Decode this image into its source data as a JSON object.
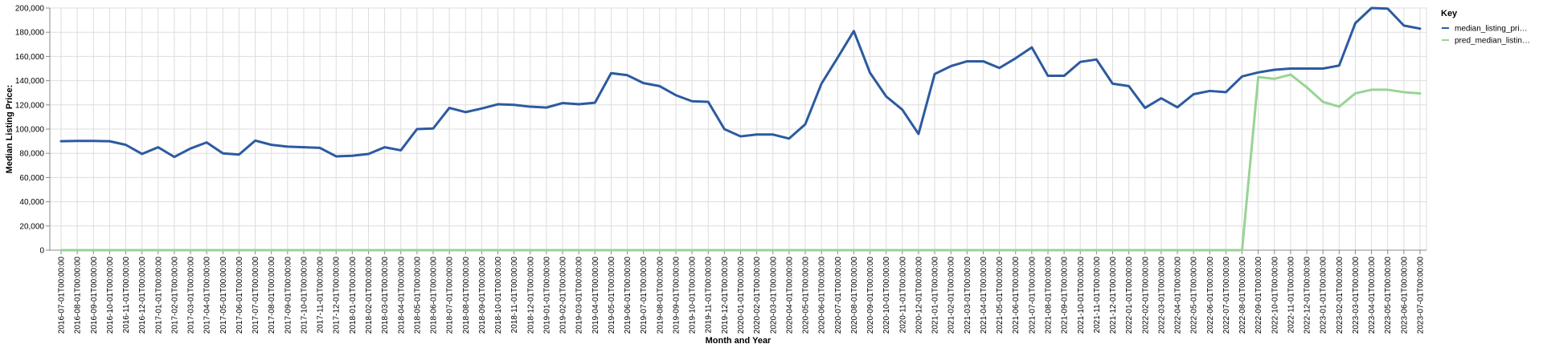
{
  "chart_data": {
    "type": "line",
    "xlabel": "Month and Year",
    "ylabel": "Median Listing Price:",
    "ylim": [
      0,
      200000
    ],
    "y_ticks": [
      "0",
      "20,000",
      "40,000",
      "60,000",
      "80,000",
      "100,000",
      "120,000",
      "140,000",
      "160,000",
      "180,000",
      "200,000"
    ],
    "legend": {
      "title": "Key",
      "position": "top-right"
    },
    "grid": true,
    "x": [
      "2016-07-01T00:00:00",
      "2016-08-01T00:00:00",
      "2016-09-01T00:00:00",
      "2016-10-01T00:00:00",
      "2016-11-01T00:00:00",
      "2016-12-01T00:00:00",
      "2017-01-01T00:00:00",
      "2017-02-01T00:00:00",
      "2017-03-01T00:00:00",
      "2017-04-01T00:00:00",
      "2017-05-01T00:00:00",
      "2017-06-01T00:00:00",
      "2017-07-01T00:00:00",
      "2017-08-01T00:00:00",
      "2017-09-01T00:00:00",
      "2017-10-01T00:00:00",
      "2017-11-01T00:00:00",
      "2017-12-01T00:00:00",
      "2018-01-01T00:00:00",
      "2018-02-01T00:00:00",
      "2018-03-01T00:00:00",
      "2018-04-01T00:00:00",
      "2018-05-01T00:00:00",
      "2018-06-01T00:00:00",
      "2018-07-01T00:00:00",
      "2018-08-01T00:00:00",
      "2018-09-01T00:00:00",
      "2018-10-01T00:00:00",
      "2018-11-01T00:00:00",
      "2018-12-01T00:00:00",
      "2019-01-01T00:00:00",
      "2019-02-01T00:00:00",
      "2019-03-01T00:00:00",
      "2019-04-01T00:00:00",
      "2019-05-01T00:00:00",
      "2019-06-01T00:00:00",
      "2019-07-01T00:00:00",
      "2019-08-01T00:00:00",
      "2019-09-01T00:00:00",
      "2019-10-01T00:00:00",
      "2019-11-01T00:00:00",
      "2019-12-01T00:00:00",
      "2020-01-01T00:00:00",
      "2020-02-01T00:00:00",
      "2020-03-01T00:00:00",
      "2020-04-01T00:00:00",
      "2020-05-01T00:00:00",
      "2020-06-01T00:00:00",
      "2020-07-01T00:00:00",
      "2020-08-01T00:00:00",
      "2020-09-01T00:00:00",
      "2020-10-01T00:00:00",
      "2020-11-01T00:00:00",
      "2020-12-01T00:00:00",
      "2021-01-01T00:00:00",
      "2021-02-01T00:00:00",
      "2021-03-01T00:00:00",
      "2021-04-01T00:00:00",
      "2021-05-01T00:00:00",
      "2021-06-01T00:00:00",
      "2021-07-01T00:00:00",
      "2021-08-01T00:00:00",
      "2021-09-01T00:00:00",
      "2021-10-01T00:00:00",
      "2021-11-01T00:00:00",
      "2021-12-01T00:00:00",
      "2022-01-01T00:00:00",
      "2022-02-01T00:00:00",
      "2022-03-01T00:00:00",
      "2022-04-01T00:00:00",
      "2022-05-01T00:00:00",
      "2022-06-01T00:00:00",
      "2022-07-01T00:00:00",
      "2022-08-01T00:00:00",
      "2022-09-01T00:00:00",
      "2022-10-01T00:00:00",
      "2022-11-01T00:00:00",
      "2022-12-01T00:00:00",
      "2023-01-01T00:00:00",
      "2023-02-01T00:00:00",
      "2023-03-01T00:00:00",
      "2023-04-01T00:00:00",
      "2023-05-01T00:00:00",
      "2023-06-01T00:00:00",
      "2023-07-01T00:00:00"
    ],
    "series": [
      {
        "name": "median_listing_pri…",
        "color": "#2c5aa0",
        "values": [
          90000,
          90200,
          90200,
          90000,
          87000,
          79500,
          85000,
          77000,
          84000,
          89000,
          80000,
          79000,
          90500,
          87000,
          85500,
          85000,
          84500,
          77500,
          78000,
          79500,
          85000,
          82500,
          100000,
          100500,
          117500,
          114000,
          117000,
          120500,
          120000,
          118500,
          117800,
          121500,
          120500,
          121800,
          146200,
          144500,
          138000,
          135500,
          128000,
          123000,
          122500,
          100000,
          94000,
          95500,
          95500,
          92200,
          104000,
          137500,
          159000,
          181000,
          146500,
          127000,
          116000,
          96000,
          145500,
          152000,
          156000,
          156000,
          150500,
          158500,
          167500,
          144000,
          144000,
          155500,
          157500,
          137500,
          135500,
          117500,
          125500,
          118000,
          128800,
          131500,
          130500,
          143500,
          146800,
          149000,
          150000,
          150000,
          150000,
          152500,
          187500,
          200000,
          199500,
          185500,
          183000
        ]
      },
      {
        "name": "pred_median_listin…",
        "color": "#98d494",
        "values": [
          0,
          0,
          0,
          0,
          0,
          0,
          0,
          0,
          0,
          0,
          0,
          0,
          0,
          0,
          0,
          0,
          0,
          0,
          0,
          0,
          0,
          0,
          0,
          0,
          0,
          0,
          0,
          0,
          0,
          0,
          0,
          0,
          0,
          0,
          0,
          0,
          0,
          0,
          0,
          0,
          0,
          0,
          0,
          0,
          0,
          0,
          0,
          0,
          0,
          0,
          0,
          0,
          0,
          0,
          0,
          0,
          0,
          0,
          0,
          0,
          0,
          0,
          0,
          0,
          0,
          0,
          0,
          0,
          0,
          0,
          0,
          0,
          0,
          0,
          143000,
          141500,
          145000,
          134500,
          122500,
          118500,
          129500,
          132500,
          132500,
          130500,
          129500
        ]
      }
    ]
  }
}
